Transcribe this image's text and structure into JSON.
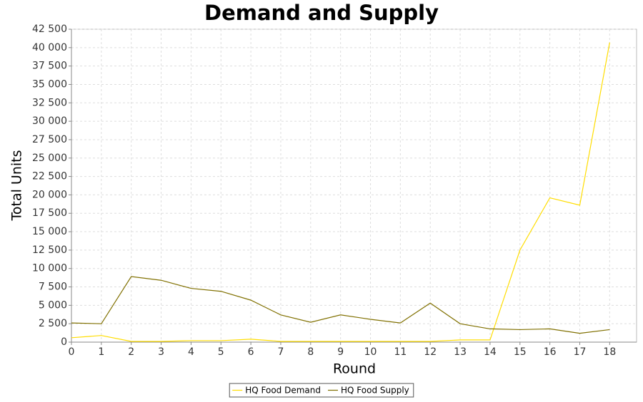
{
  "chart_data": {
    "type": "line",
    "title": "Demand and Supply",
    "x_label": "Round",
    "y_label": "Total Units",
    "x": [
      0,
      1,
      2,
      3,
      4,
      5,
      6,
      7,
      8,
      9,
      10,
      11,
      12,
      13,
      14,
      15,
      16,
      17,
      18
    ],
    "series": [
      {
        "name": "HQ Food Demand",
        "color": "#ffdd00",
        "values": [
          600,
          900,
          100,
          100,
          200,
          200,
          400,
          100,
          100,
          100,
          100,
          100,
          100,
          300,
          300,
          12500,
          19600,
          18600,
          40700
        ]
      },
      {
        "name": "HQ Food Supply",
        "color": "#807000",
        "values": [
          2600,
          2500,
          8900,
          8400,
          7300,
          6900,
          5700,
          3700,
          2700,
          3700,
          3100,
          2600,
          5300,
          2500,
          1800,
          1700,
          1800,
          1200,
          1700
        ]
      }
    ],
    "xlim": [
      0,
      18.9
    ],
    "ylim": [
      0,
      42500
    ],
    "xticks": [
      0,
      1,
      2,
      3,
      4,
      5,
      6,
      7,
      8,
      9,
      10,
      11,
      12,
      13,
      14,
      15,
      16,
      17,
      18
    ],
    "yticks": [
      0,
      {
        "value": 2500,
        "label": "2 500"
      },
      {
        "value": 5000,
        "label": "5 000"
      },
      {
        "value": 7500,
        "label": "7 500"
      },
      {
        "value": 10000,
        "label": "10 000"
      },
      {
        "value": 12500,
        "label": "12 500"
      },
      {
        "value": 15000,
        "label": "15 000"
      },
      {
        "value": 17500,
        "label": "17 500"
      },
      {
        "value": 20000,
        "label": "20 000"
      },
      {
        "value": 22500,
        "label": "22 500"
      },
      {
        "value": 25000,
        "label": "25 000"
      },
      {
        "value": 27500,
        "label": "27 500"
      },
      {
        "value": 30000,
        "label": "30 000"
      },
      {
        "value": 32500,
        "label": "32 500"
      },
      {
        "value": 35000,
        "label": "35 000"
      },
      {
        "value": 37500,
        "label": "37 500"
      },
      {
        "value": 40000,
        "label": "40 000"
      },
      {
        "value": 42500,
        "label": "42 500"
      }
    ],
    "grid": true,
    "legend": "bottom"
  }
}
